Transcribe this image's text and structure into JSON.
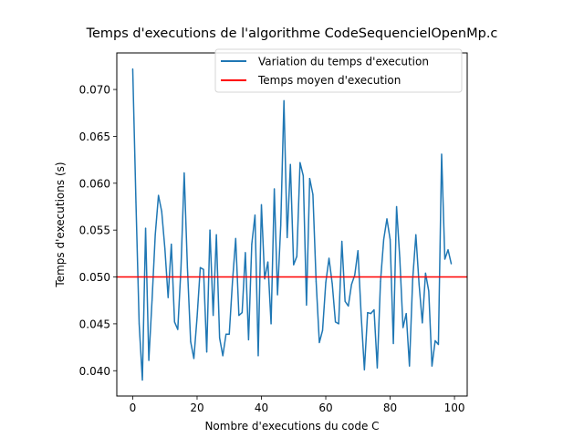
{
  "chart_data": {
    "type": "line",
    "title": "Temps d'executions de l'algorithme CodeSequencielOpenMp.c",
    "xlabel": "Nombre d'executions du code C",
    "ylabel": "Temps d'executions (s)",
    "xlim": [
      -4.95,
      103.95
    ],
    "ylim": [
      0.0373,
      0.0739
    ],
    "xticks": [
      0,
      20,
      40,
      60,
      80,
      100
    ],
    "yticks": [
      0.04,
      0.045,
      0.05,
      0.055,
      0.06,
      0.065,
      0.07
    ],
    "xtick_labels": [
      "0",
      "20",
      "40",
      "60",
      "80",
      "100"
    ],
    "ytick_labels": [
      "0.040",
      "0.045",
      "0.050",
      "0.055",
      "0.060",
      "0.065",
      "0.070"
    ],
    "legend_position": "top-right",
    "grid": false,
    "series": [
      {
        "name": "Variation du temps d'execution",
        "color": "#1f77b4",
        "x": [
          0,
          1,
          2,
          3,
          4,
          5,
          6,
          7,
          8,
          9,
          10,
          11,
          12,
          13,
          14,
          15,
          16,
          17,
          18,
          19,
          20,
          21,
          22,
          23,
          24,
          25,
          26,
          27,
          28,
          29,
          30,
          31,
          32,
          33,
          34,
          35,
          36,
          37,
          38,
          39,
          40,
          41,
          42,
          43,
          44,
          45,
          46,
          47,
          48,
          49,
          50,
          51,
          52,
          53,
          54,
          55,
          56,
          57,
          58,
          59,
          60,
          61,
          62,
          63,
          64,
          65,
          66,
          67,
          68,
          69,
          70,
          71,
          72,
          73,
          74,
          75,
          76,
          77,
          78,
          79,
          80,
          81,
          82,
          83,
          84,
          85,
          86,
          87,
          88,
          89,
          90,
          91,
          92,
          93,
          94,
          95,
          96,
          97,
          98,
          99
        ],
        "values": [
          0.0722,
          0.058,
          0.045,
          0.039,
          0.0552,
          0.0411,
          0.0475,
          0.0545,
          0.0587,
          0.057,
          0.053,
          0.0478,
          0.0535,
          0.0452,
          0.0444,
          0.051,
          0.0611,
          0.051,
          0.0431,
          0.0413,
          0.0457,
          0.051,
          0.0508,
          0.042,
          0.055,
          0.0459,
          0.0545,
          0.0435,
          0.0416,
          0.0439,
          0.0439,
          0.0495,
          0.0541,
          0.0459,
          0.0462,
          0.0526,
          0.0433,
          0.0535,
          0.0566,
          0.0416,
          0.0577,
          0.0498,
          0.0516,
          0.045,
          0.0594,
          0.0481,
          0.0555,
          0.0688,
          0.0542,
          0.062,
          0.0513,
          0.0522,
          0.0622,
          0.0608,
          0.047,
          0.0605,
          0.0588,
          0.0495,
          0.043,
          0.0443,
          0.0494,
          0.052,
          0.0493,
          0.0452,
          0.045,
          0.0538,
          0.0474,
          0.0469,
          0.0492,
          0.0502,
          0.0528,
          0.0459,
          0.0401,
          0.0462,
          0.0461,
          0.0465,
          0.0403,
          0.0495,
          0.054,
          0.0562,
          0.054,
          0.0429,
          0.0575,
          0.052,
          0.0446,
          0.0461,
          0.0405,
          0.0497,
          0.0545,
          0.0492,
          0.0451,
          0.0504,
          0.0485,
          0.0405,
          0.0432,
          0.0428,
          0.0631,
          0.0519,
          0.0529,
          0.0514
        ]
      },
      {
        "name": "Temps moyen d'execution",
        "color": "#ff0000",
        "constant": 0.05
      }
    ]
  }
}
